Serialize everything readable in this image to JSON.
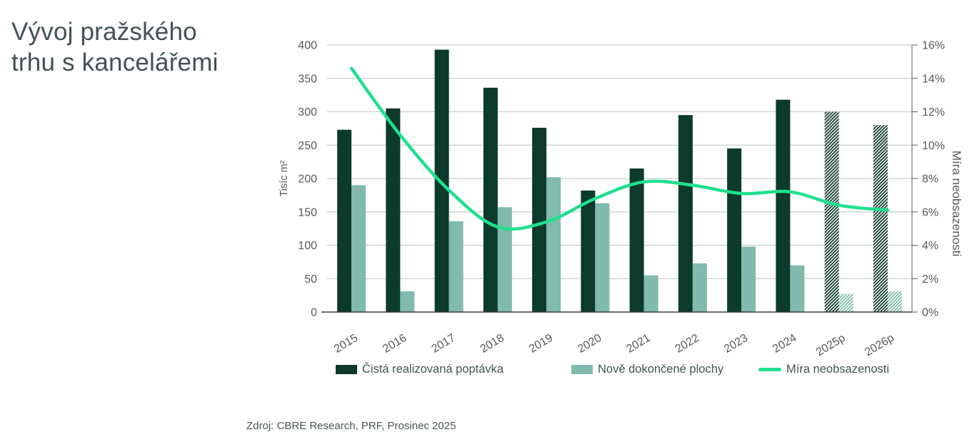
{
  "page": {
    "title_line1": "Vývoj pražského",
    "title_line2": "trhu s kancelářemi",
    "source": "Zdroj: CBRE Research, PRF, Prosinec 2025"
  },
  "colors": {
    "title_text": "#435254",
    "axis_text": "#595959",
    "gridline": "#C9CDCD",
    "bottom_axis_line": "#3B3B3B",
    "right_axis_line": "#6E7777",
    "demand_bar": "#0C3A2B",
    "completions_bar": "#80BBAD",
    "vacancy_line": "#1FE08F",
    "background": "#FFFFFF"
  },
  "chart_data": {
    "type": "bar",
    "subtype": "grouped bars with secondary-axis line, forecast bars hatched",
    "title": "Vývoj pražského trhu s kancelářemi",
    "categories": [
      "2015",
      "2016",
      "2017",
      "2018",
      "2019",
      "2020",
      "2021",
      "2022",
      "2023",
      "2024",
      "2025p",
      "2026p"
    ],
    "forecast_categories": [
      "2025p",
      "2026p"
    ],
    "left_axis": {
      "label": "Tisíc m²",
      "min": 0,
      "max": 400,
      "tick_step": 50,
      "ticks": [
        "0",
        "50",
        "100",
        "150",
        "200",
        "250",
        "300",
        "350",
        "400"
      ]
    },
    "right_axis": {
      "label": "Míra neobsazenosti",
      "min": 0,
      "max": 16,
      "tick_step": 2,
      "ticks": [
        "0%",
        "2%",
        "4%",
        "6%",
        "8%",
        "10%",
        "12%",
        "14%",
        "16%"
      ]
    },
    "series": [
      {
        "name": "Čistá realizovaná poptávka",
        "type": "bar",
        "axis": "left",
        "values": [
          273,
          305,
          393,
          336,
          276,
          182,
          215,
          295,
          245,
          318,
          300,
          280
        ]
      },
      {
        "name": "Nově dokončené plochy",
        "type": "bar",
        "axis": "left",
        "values": [
          190,
          31,
          136,
          157,
          202,
          163,
          55,
          73,
          98,
          70,
          27,
          31
        ]
      },
      {
        "name": "Míra neobsazenosti",
        "type": "line",
        "axis": "right",
        "values_pct": [
          14.6,
          10.6,
          7.3,
          5.1,
          5.4,
          6.8,
          7.8,
          7.6,
          7.1,
          7.2,
          6.4,
          6.1
        ]
      }
    ],
    "legend_position": "bottom",
    "grid": "horizontal"
  }
}
